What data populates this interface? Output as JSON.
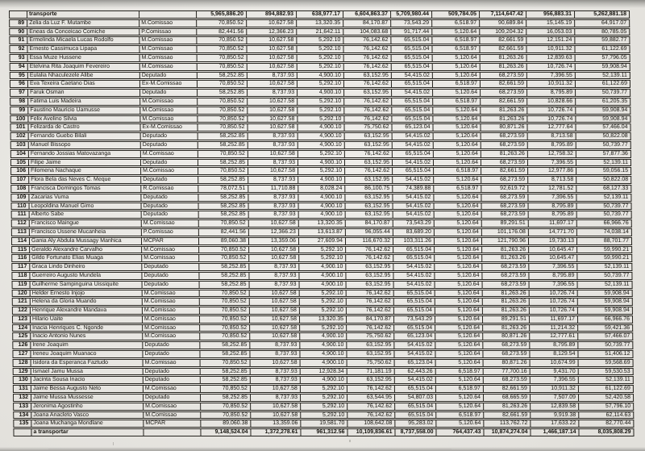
{
  "colors": {
    "ink": "#16140f",
    "paper": "#e9e7e2"
  },
  "table": {
    "row_format": [
      "num",
      "name",
      "category",
      "v1",
      "v2",
      "v3",
      "v4",
      "v5",
      "v6",
      "v7",
      "v8",
      "v9"
    ],
    "carry_in": [
      "",
      "transporte",
      "",
      "5,965,886.20",
      "894,882.93",
      "638,977.17",
      "6,604,863.37",
      "5,709,980.44",
      "509,784.05",
      "7,114,647.42",
      "956,883.31",
      "5,262,881.18"
    ],
    "rows": [
      [
        "89",
        "Zelia da Luz F. Mutambe",
        "M.Comissao",
        "70,850.52",
        "10,627.58",
        "13,320.35",
        "84,170.87",
        "73,543.29",
        "6,518.97",
        "90,689.84",
        "15,145.19",
        "64,917.07"
      ],
      [
        "90",
        "Eneas da Conceicao Comiche",
        "P.Comissao",
        "82,441.56",
        "12,366.23",
        "21,642.11",
        "104,083.68",
        "91,717.44",
        "5,120.64",
        "109,204.32",
        "16,053.03",
        "80,785.05"
      ],
      [
        "91",
        "Ermelinda Micaela Lucas Rodolfo",
        "M.Comissao",
        "70,850.52",
        "10,627.58",
        "5,292.10",
        "76,142.62",
        "65,515.04",
        "6,518.97",
        "82,661.59",
        "12,151.24",
        "59,882.77"
      ],
      [
        "92",
        "Ernesto Cassimuca Lipapa",
        "M.Comissao",
        "70,850.52",
        "10,627.58",
        "5,292.10",
        "76,142.62",
        "65,515.04",
        "6,518.97",
        "82,661.59",
        "10,911.32",
        "61,122.69"
      ],
      [
        "93",
        "Essa Muze Hussene",
        "M.Comissao",
        "70,850.52",
        "10,627.58",
        "5,292.10",
        "76,142.62",
        "65,515.04",
        "5,120.64",
        "81,263.26",
        "12,839.63",
        "57,796.05"
      ],
      [
        "94",
        "Etelvina Rita Joaquim Fevereiro",
        "M.Comissao",
        "70,850.52",
        "10,627.58",
        "5,292.10",
        "76,142.62",
        "65,515.04",
        "5,120.64",
        "81,263.26",
        "10,726.74",
        "59,908.94"
      ],
      [
        "95",
        "Eulalia Nhaculezele Alibe",
        "Deputado",
        "58,252.85",
        "8,737.93",
        "4,900.10",
        "63,152.95",
        "54,415.02",
        "5,120.64",
        "68,273.59",
        "7,396.55",
        "52,139.11"
      ],
      [
        "96",
        "Eva Texeira Caetano Dias",
        "Ex-M.Comissao",
        "70,850.52",
        "10,627.58",
        "5,292.10",
        "76,142.62",
        "65,515.04",
        "6,518.97",
        "82,661.59",
        "10,911.32",
        "61,122.69"
      ],
      [
        "97",
        "Faruk Osman",
        "Deputado",
        "58,252.85",
        "8,737.93",
        "4,900.10",
        "63,152.95",
        "54,415.02",
        "5,120.64",
        "68,273.59",
        "8,795.89",
        "50,739.77"
      ],
      [
        "98",
        "Fatima Luis Madeira",
        "M.Comissao",
        "70,850.52",
        "10,627.58",
        "5,292.10",
        "76,142.62",
        "65,515.04",
        "6,518.97",
        "82,661.59",
        "10,828.66",
        "61,205.35"
      ],
      [
        "99",
        "Faustino Mauricio Uamusse",
        "M.Comissao",
        "70,850.52",
        "10,627.58",
        "5,292.10",
        "76,142.62",
        "65,515.04",
        "5,120.64",
        "81,263.26",
        "10,726.74",
        "59,908.94"
      ],
      [
        "100",
        "Felix Avelino Silvia",
        "M.Comissao",
        "70,850.52",
        "10,627.58",
        "5,292.10",
        "76,142.62",
        "65,515.04",
        "5,120.64",
        "81,263.26",
        "10,726.74",
        "59,908.94"
      ],
      [
        "101",
        "Felizarda de Castro",
        "Ex-M.Comissao",
        "70,850.52",
        "10,627.58",
        "4,900.10",
        "75,750.62",
        "65,123.04",
        "5,120.64",
        "80,871.26",
        "12,777.64",
        "57,466.04"
      ],
      [
        "102",
        "Fernando Guebo Bilali",
        "Deputado",
        "58,252.85",
        "8,737.93",
        "4,900.10",
        "63,152.95",
        "54,415.02",
        "5,120.64",
        "68,273.59",
        "8,713.58",
        "50,822.08"
      ],
      [
        "103",
        "Manuel Bissopo",
        "Deputado",
        "58,252.85",
        "8,737.93",
        "4,900.10",
        "63,152.95",
        "54,415.02",
        "5,120.64",
        "68,273.59",
        "8,795.89",
        "50,739.77"
      ],
      [
        "104",
        "Fernando Jossias Matovazanga",
        "M.Comissao",
        "70,850.52",
        "10,627.58",
        "5,292.10",
        "76,142.62",
        "65,515.04",
        "5,120.64",
        "81,263.26",
        "12,758.32",
        "57,877.36"
      ],
      [
        "105",
        "Filipe Jaime",
        "Deputado",
        "58,252.85",
        "8,737.93",
        "4,900.10",
        "63,152.95",
        "54,415.02",
        "5,120.64",
        "68,273.59",
        "7,396.55",
        "52,139.11"
      ],
      [
        "106",
        "Filomena Nachaque",
        "M.Comissao",
        "70,850.52",
        "10,627.58",
        "5,292.10",
        "76,142.62",
        "65,515.04",
        "6,518.97",
        "82,661.59",
        "12,977.86",
        "59,056.15"
      ],
      [
        "107",
        "Flora Bela das Neves C.  Meque",
        "Deputado",
        "58,252.85",
        "8,737.93",
        "4,900.10",
        "63,152.95",
        "54,415.02",
        "5,120.64",
        "68,273.59",
        "8,713.58",
        "50,822.08"
      ],
      [
        "108",
        "Francisca Domingos Tomas",
        "R.Comissao",
        "78,072.51",
        "11,710.88",
        "8,028.24",
        "86,100.75",
        "74,389.88",
        "6,518.97",
        "92,619.72",
        "12,781.52",
        "68,127.33"
      ],
      [
        "109",
        "Zacarias Vuma",
        "Deputado",
        "58,252.85",
        "8,737.93",
        "4,900.10",
        "63,152.95",
        "54,415.02",
        "5,120.64",
        "68,273.59",
        "7,396.55",
        "52,139.11"
      ],
      [
        "110",
        "Leopoldina Manuel Gimo",
        "Deputado",
        "58,252.85",
        "8,737.93",
        "4,900.10",
        "63,152.95",
        "54,415.02",
        "5,120.64",
        "68,273.59",
        "8,795.89",
        "50,739.77"
      ],
      [
        "111",
        "Alberto Sabe",
        "Deputado",
        "58,252.85",
        "8,737.93",
        "4,900.10",
        "63,152.95",
        "54,415.02",
        "5,120.64",
        "68,273.59",
        "8,795.89",
        "50,739.77"
      ],
      [
        "112",
        "Francisco Maingue",
        "M.Comissao",
        "70,850.52",
        "10,627.58",
        "13,320.35",
        "84,170.87",
        "73,543.29",
        "5,120.64",
        "89,291.51",
        "11,697.17",
        "66,966.76"
      ],
      [
        "113",
        "Francisco Ussene Mucanheia",
        "P.Comissao",
        "82,441.56",
        "12,366.23",
        "13,613.87",
        "96,055.44",
        "83,689.20",
        "5,120.64",
        "101,176.08",
        "14,771.70",
        "74,038.14"
      ],
      [
        "114",
        "Gania Aly Abdula Mussagy Manhica",
        "MCPAR",
        "89,060.38",
        "13,359.06",
        "27,609.94",
        "116,670.32",
        "103,311.26",
        "5,120.64",
        "121,790.96",
        "19,730.13",
        "88,701.77"
      ],
      [
        "115",
        "Geraldo Alexandre Carvalho",
        "M.Comissao",
        "70,850.52",
        "10,627.58",
        "5,292.10",
        "76,142.62",
        "65,515.04",
        "5,120.64",
        "81,263.26",
        "10,645.47",
        "59,990.21"
      ],
      [
        "116",
        "Gildo Fortunato Elias Muaga",
        "M.Comissao",
        "70,850.52",
        "10,627.58",
        "5,292.10",
        "76,142.62",
        "65,515.04",
        "5,120.64",
        "81,263.26",
        "10,645.47",
        "59,990.21"
      ],
      [
        "117",
        "Graca Lindo Dinheiro",
        "Deputado",
        "58,252.85",
        "8,737.93",
        "4,900.10",
        "63,152.95",
        "54,415.02",
        "5,120.64",
        "68,273.59",
        "7,396.55",
        "52,139.11"
      ],
      [
        "118",
        "Guerreiro Augusto Mundela",
        "Deputado",
        "58,252.85",
        "8,737.93",
        "4,900.10",
        "63,152.95",
        "54,415.02",
        "5,120.64",
        "68,273.59",
        "8,795.89",
        "50,739.77"
      ],
      [
        "119",
        "Guilherme Sampinguina Uissiquite",
        "Deputado",
        "58,252.85",
        "8,737.93",
        "4,900.10",
        "63,152.95",
        "54,415.02",
        "5,120.64",
        "68,273.59",
        "7,396.55",
        "52,139.11"
      ],
      [
        "120",
        "Helder Ernesto Injojo",
        "M.Comissao",
        "70,850.52",
        "10,627.58",
        "5,292.10",
        "76,142.62",
        "65,515.04",
        "5,120.64",
        "81,263.26",
        "10,726.74",
        "59,908.94"
      ],
      [
        "121",
        "Helena da Gloria Muando",
        "M.Comissao",
        "70,850.52",
        "10,627.58",
        "5,292.10",
        "76,142.62",
        "65,515.04",
        "5,120.64",
        "81,263.26",
        "10,726.74",
        "59,908.94"
      ],
      [
        "122",
        "Henrique Alexandre Mandava",
        "M.Comissao",
        "70,850.52",
        "10,627.58",
        "5,292.10",
        "76,142.62",
        "65,515.04",
        "5,120.64",
        "81,263.26",
        "10,726.74",
        "59,908.94"
      ],
      [
        "123",
        "Hilario Uaite",
        "M.Comissao",
        "70,850.52",
        "10,627.58",
        "13,320.35",
        "84,170.87",
        "73,543.29",
        "5,120.64",
        "89,291.51",
        "11,697.17",
        "66,966.76"
      ],
      [
        "124",
        "Inacia  Henriques C. Ngonde",
        "M.Comissao",
        "70,850.52",
        "10,627.58",
        "5,292.10",
        "76,142.62",
        "65,515.04",
        "5,120.64",
        "81,263.26",
        "11,214.32",
        "59,421.36"
      ],
      [
        "125",
        "Inacio Antonio Nunes",
        "M.Comissao",
        "70,850.52",
        "10,627.58",
        "4,900.10",
        "75,750.62",
        "65,123.04",
        "5,120.64",
        "80,871.26",
        "12,777.61",
        "57,466.07"
      ],
      [
        "126",
        "Irene Joaquim",
        "Deputado",
        "58,252.85",
        "8,737.93",
        "4,900.10",
        "63,152.95",
        "54,415.02",
        "5,120.64",
        "68,273.59",
        "8,795.89",
        "50,739.77"
      ],
      [
        "127",
        "Ireneu Joaquim Muanaco",
        "Deputado",
        "58,252.85",
        "8,737.93",
        "4,900.10",
        "63,152.95",
        "54,415.02",
        "5,120.64",
        "68,273.59",
        "8,129.54",
        "51,406.12"
      ],
      [
        "128",
        "Isidora da Esperanca Faztudo",
        "M.Comissao",
        "70,850.52",
        "10,627.58",
        "4,900.10",
        "75,750.62",
        "65,123.04",
        "5,120.64",
        "80,871.26",
        "10,674.99",
        "59,568.69"
      ],
      [
        "129",
        "Ismael Jamu Mussa",
        "Deputado",
        "58,252.85",
        "8,737.93",
        "12,928.34",
        "71,181.19",
        "62,443.26",
        "6,518.97",
        "77,700.16",
        "9,431.70",
        "59,530.53"
      ],
      [
        "130",
        "Jacinta Sousa Inacio",
        "Deputado",
        "58,252.85",
        "8,737.93",
        "4,900.10",
        "63,152.95",
        "54,415.02",
        "5,120.64",
        "68,273.59",
        "7,396.55",
        "52,139.11"
      ],
      [
        "131",
        "Jaime Bessa Augusto Neto",
        "M.Comissao",
        "70,850.52",
        "10,627.58",
        "5,292.10",
        "76,142.62",
        "65,515.04",
        "6,518.97",
        "82,661.59",
        "10,911.32",
        "61,122.69"
      ],
      [
        "132",
        "Jaime Mussa Mussesse",
        "Deputado",
        "58,252.85",
        "8,737.93",
        "5,292.10",
        "63,544.95",
        "54,807.03",
        "5,120.64",
        "68,665.59",
        "7,507.09",
        "52,420.58"
      ],
      [
        "133",
        "Jeronima Agostinho",
        "M.Comissao",
        "70,850.52",
        "10,627.58",
        "5,292.10",
        "76,142.62",
        "65,515.04",
        "5,120.64",
        "81,263.26",
        "12,839.58",
        "57,796.10"
      ],
      [
        "134",
        "Joana Anacleto Vasco",
        "M.Comissao",
        "70,850.52",
        "10,627.58",
        "5,292.10",
        "76,142.62",
        "65,515.04",
        "6,518.97",
        "82,661.59",
        "9,919.38",
        "62,114.63"
      ],
      [
        "135",
        "Joana Muchanga Mondlane",
        "MCPAR",
        "89,060.38",
        "13,359.06",
        "19,581.70",
        "108,642.08",
        "95,283.02",
        "5,120.64",
        "113,762.72",
        "17,633.22",
        "82,770.44"
      ]
    ],
    "carry_out": [
      "",
      "a transportar",
      "",
      "9,148,524.04",
      "1,372,278.61",
      "961,312.56",
      "10,109,836.61",
      "8,737,558.00",
      "764,437.43",
      "10,874,274.04",
      "1,466,187.14",
      "8,035,808.29"
    ]
  }
}
